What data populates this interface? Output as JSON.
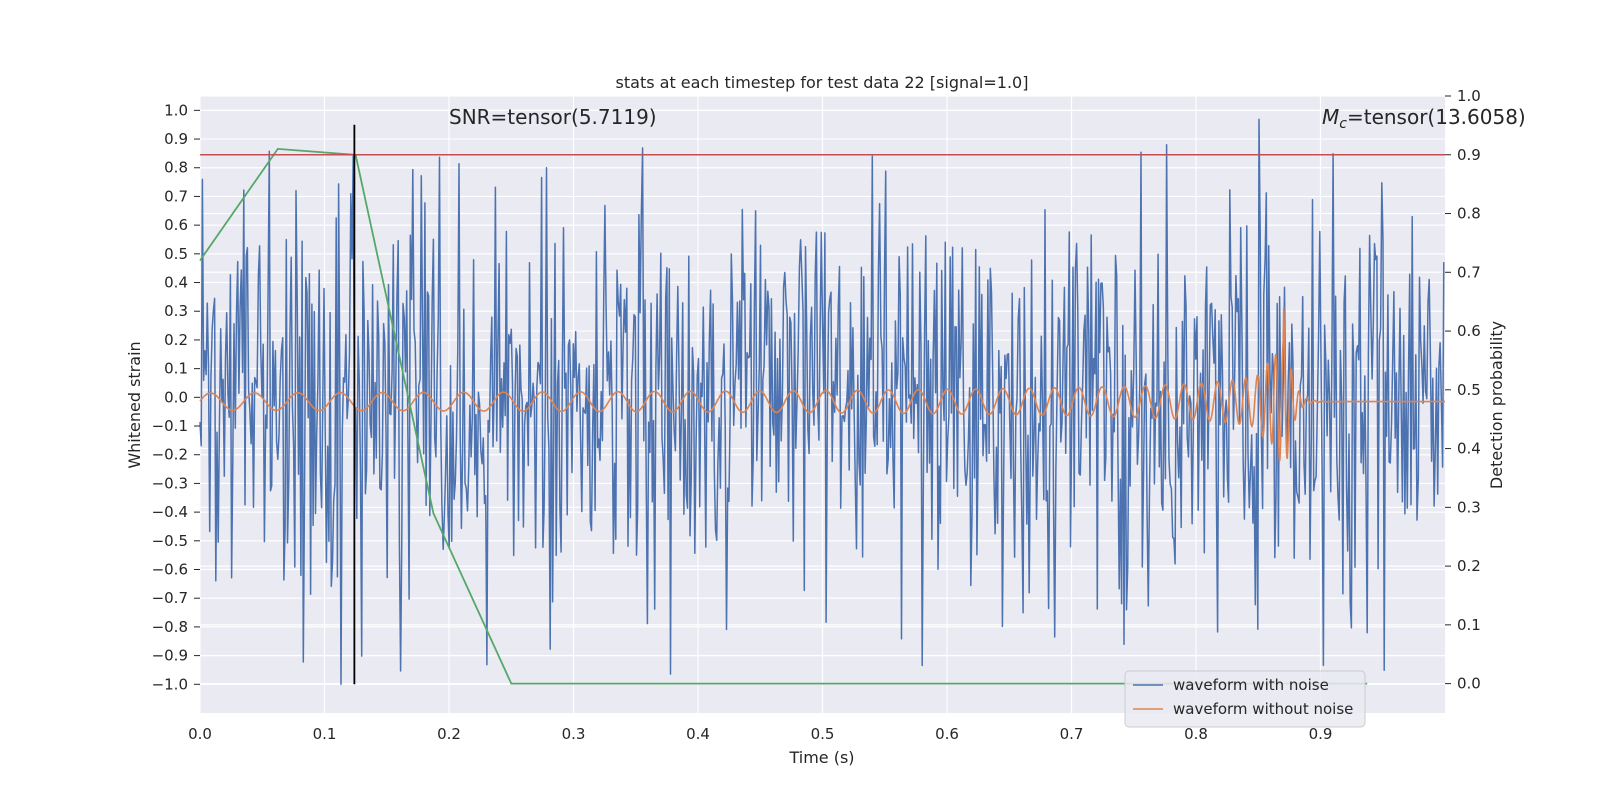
{
  "chart_data": {
    "type": "line",
    "title": "stats at each timestep for test data 22 [signal=1.0]",
    "xlabel": "Time (s)",
    "ylabel_left": "Whitened strain",
    "ylabel_right": "Detection probability",
    "xlim": [
      0.0,
      1.0
    ],
    "ylim_left": [
      -1.1,
      1.05
    ],
    "ylim_right": [
      -0.05,
      1.0
    ],
    "x_ticks": [
      "0.0",
      "0.1",
      "0.2",
      "0.3",
      "0.4",
      "0.5",
      "0.6",
      "0.7",
      "0.8",
      "0.9"
    ],
    "x_tick_values": [
      0.0,
      0.1,
      0.2,
      0.3,
      0.4,
      0.5,
      0.6,
      0.7,
      0.8,
      0.9
    ],
    "y_ticks_left": [
      "1.0",
      "0.9",
      "0.8",
      "0.7",
      "0.6",
      "0.5",
      "0.4",
      "0.3",
      "0.2",
      "0.1",
      "0.0",
      "−0.1",
      "−0.2",
      "−0.3",
      "−0.4",
      "−0.5",
      "−0.6",
      "−0.7",
      "−0.8",
      "−0.9",
      "−1.0"
    ],
    "y_tick_values_left": [
      1.0,
      0.9,
      0.8,
      0.7,
      0.6,
      0.5,
      0.4,
      0.3,
      0.2,
      0.1,
      0.0,
      -0.1,
      -0.2,
      -0.3,
      -0.4,
      -0.5,
      -0.6,
      -0.7,
      -0.8,
      -0.9,
      -1.0
    ],
    "y_ticks_right": [
      "1.0",
      "0.9",
      "0.8",
      "0.7",
      "0.6",
      "0.5",
      "0.4",
      "0.3",
      "0.2",
      "0.1",
      "0.0"
    ],
    "y_tick_values_right": [
      1.0,
      0.9,
      0.8,
      0.7,
      0.6,
      0.5,
      0.4,
      0.3,
      0.2,
      0.1,
      0.0
    ],
    "annotations": {
      "snr": "SNR=tensor(5.7119)",
      "mc_symbol": "M",
      "mc_subscript": "c",
      "mc_value": "=tensor(13.6058)"
    },
    "threshold": {
      "value": 0.9,
      "axis": "right",
      "color": "#c44e52"
    },
    "marker_time": 0.124,
    "legend": {
      "placement": "lower right",
      "entries": [
        {
          "label": "waveform with noise",
          "color": "#4c72b0"
        },
        {
          "label": "waveform without noise",
          "color": "#dd8452"
        }
      ]
    },
    "series": [
      {
        "name": "waveform with noise",
        "color": "#4c72b0",
        "axis": "left",
        "kind": "gaussian_noise",
        "samples": 1024,
        "std": 0.34,
        "min": -1.0,
        "max": 0.97,
        "seed": 22
      },
      {
        "name": "waveform without noise",
        "color": "#dd8452",
        "axis": "left",
        "kind": "chirp",
        "coalescence_time": 0.87,
        "amplitude_start": 0.03,
        "amplitude_peak": 0.36,
        "freq_start": 28,
        "freq_peak": 160
      },
      {
        "name": "detection probability",
        "color": "#55a868",
        "axis": "right",
        "x": [
          0.0,
          0.0625,
          0.125,
          0.1875,
          0.25,
          0.3125,
          0.375,
          0.4375,
          0.5,
          0.5625,
          0.625,
          0.6875,
          0.75,
          0.8125,
          0.875,
          0.9375
        ],
        "y": [
          0.72,
          0.91,
          0.9,
          0.29,
          0.0,
          0.0,
          0.0,
          0.0,
          0.0,
          0.0,
          0.0,
          0.0,
          0.0,
          0.0,
          0.0,
          0.0
        ]
      }
    ],
    "grid": true,
    "background": "#eaeaf2"
  }
}
